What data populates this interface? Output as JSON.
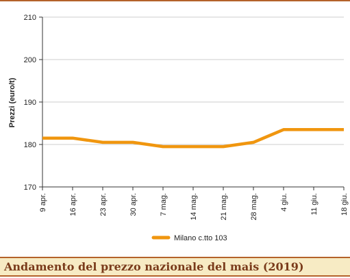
{
  "caption": "Andamento del prezzo nazionale del mais (2019)",
  "colors": {
    "series": "#f0960f",
    "caption_text": "#7a3b1b",
    "caption_bg": "#f7ebc4",
    "rule": "#b4622a"
  },
  "chart_data": {
    "type": "line",
    "title": "",
    "xlabel": "",
    "ylabel": "Prezzi (euro/t)",
    "ylim": [
      170,
      210
    ],
    "yticks": [
      170,
      180,
      190,
      200,
      210
    ],
    "grid": "horizontal",
    "legend_position": "bottom",
    "categories": [
      "9 apr.",
      "16 apr.",
      "23 apr.",
      "30 apr.",
      "7 mag.",
      "14 mag.",
      "21 mag.",
      "28 mag.",
      "4 giu.",
      "11 giu.",
      "18 giu."
    ],
    "series": [
      {
        "name": "Milano  c.tto 103",
        "values": [
          181.5,
          181.5,
          180.5,
          180.5,
          179.5,
          179.5,
          179.5,
          180.5,
          183.5,
          183.5,
          183.5
        ]
      }
    ]
  }
}
